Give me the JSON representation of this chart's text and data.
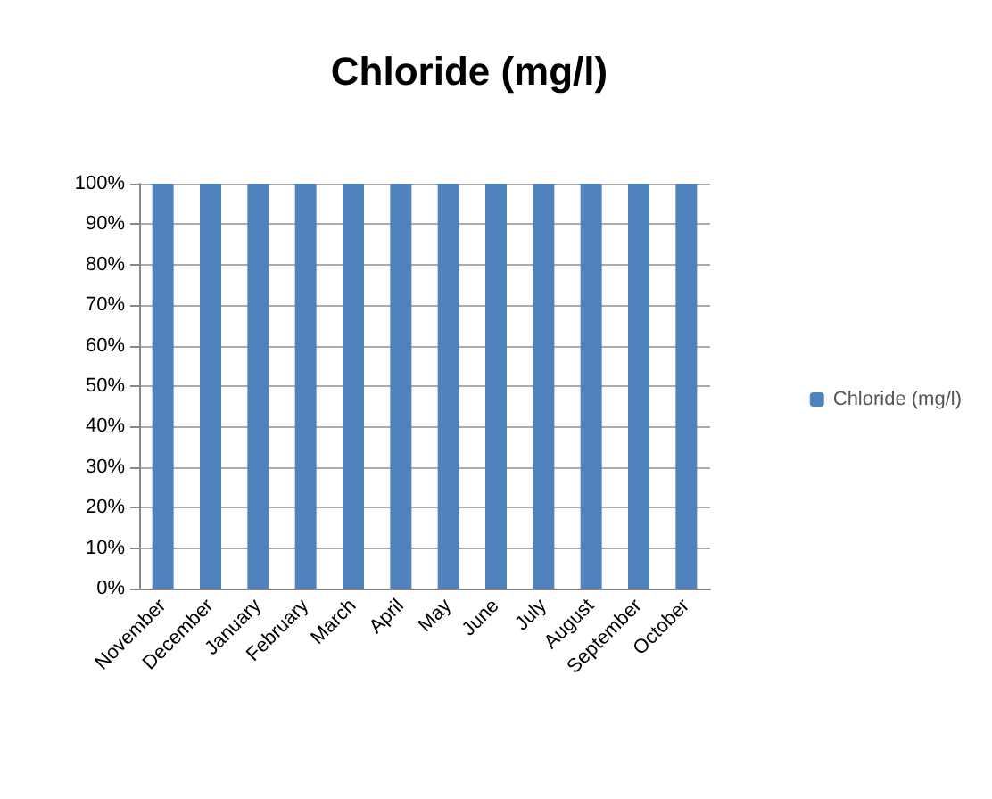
{
  "chart_data": {
    "type": "bar",
    "title": "Chloride (mg/l)",
    "categories": [
      "November",
      "December",
      "January",
      "February",
      "March",
      "April",
      "May",
      "June",
      "July",
      "August",
      "September",
      "October"
    ],
    "series": [
      {
        "name": "Chloride (mg/l)",
        "color": "#4f81bd",
        "values": [
          100,
          100,
          100,
          100,
          100,
          100,
          100,
          100,
          100,
          100,
          100,
          100
        ]
      }
    ],
    "ylim": [
      0,
      100
    ],
    "yticks": [
      {
        "value": 0,
        "label": "0%"
      },
      {
        "value": 10,
        "label": "10%"
      },
      {
        "value": 20,
        "label": "20%"
      },
      {
        "value": 30,
        "label": "30%"
      },
      {
        "value": 40,
        "label": "40%"
      },
      {
        "value": 50,
        "label": "50%"
      },
      {
        "value": 60,
        "label": "60%"
      },
      {
        "value": 70,
        "label": "70%"
      },
      {
        "value": 80,
        "label": "80%"
      },
      {
        "value": 90,
        "label": "90%"
      },
      {
        "value": 100,
        "label": "100%"
      }
    ],
    "grid": "y",
    "legend": "right"
  }
}
